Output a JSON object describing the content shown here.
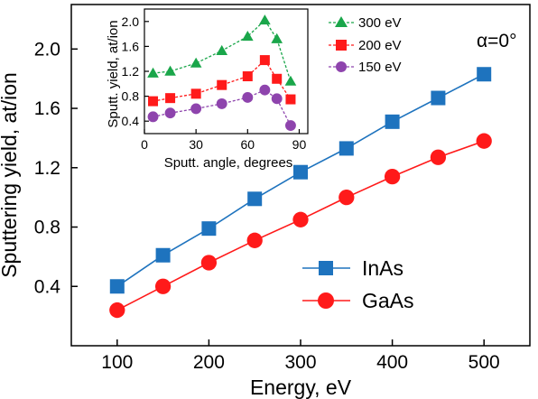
{
  "chart_data": [
    {
      "type": "line",
      "annotation": "α=0°",
      "xlabel": "Energy, eV",
      "ylabel": "Sputtering yield, at/ion",
      "xlim": [
        50,
        550
      ],
      "ylim": [
        0.0,
        2.3
      ],
      "xticks": [
        100,
        200,
        300,
        400,
        500
      ],
      "xtick_labels": [
        "100",
        "200",
        "300",
        "400",
        "500"
      ],
      "yticks": [
        0.4,
        0.8,
        1.2,
        1.6,
        2.0
      ],
      "ytick_labels": [
        "0.4",
        "0.8",
        "1.2",
        "1.6",
        "2.0"
      ],
      "legend_position": "lower-right",
      "grid": false,
      "series": [
        {
          "name": "InAs",
          "color": "#1e73be",
          "marker": "square",
          "x": [
            100,
            150,
            200,
            250,
            300,
            350,
            400,
            450,
            500
          ],
          "y": [
            0.4,
            0.61,
            0.79,
            0.99,
            1.17,
            1.33,
            1.51,
            1.67,
            1.83
          ]
        },
        {
          "name": "GaAs",
          "color": "#ff1a1a",
          "marker": "circle",
          "x": [
            100,
            150,
            200,
            250,
            300,
            350,
            400,
            450,
            500
          ],
          "y": [
            0.24,
            0.4,
            0.56,
            0.71,
            0.85,
            1.0,
            1.14,
            1.27,
            1.38
          ]
        }
      ]
    },
    {
      "type": "line",
      "inset": true,
      "xlabel": "Sputt. angle, degrees",
      "ylabel": "Sputt. yield, at/ion",
      "xlim": [
        0,
        95
      ],
      "ylim": [
        0.2,
        2.2
      ],
      "xticks": [
        0,
        30,
        60,
        90
      ],
      "xtick_labels": [
        "0",
        "30",
        "60",
        "90"
      ],
      "yticks": [
        0.4,
        0.8,
        1.2,
        1.6,
        2.0
      ],
      "ytick_labels": [
        "0.4",
        "0.8",
        "1.2",
        "1.6",
        "2.0"
      ],
      "legend_position": "top-right",
      "grid": false,
      "series": [
        {
          "name": "300 eV",
          "color": "#1aa64a",
          "marker": "triangle",
          "x": [
            5,
            15,
            30,
            45,
            60,
            70,
            77,
            85
          ],
          "y": [
            1.17,
            1.2,
            1.33,
            1.53,
            1.76,
            2.02,
            1.72,
            1.04
          ]
        },
        {
          "name": "200 eV",
          "color": "#ff1a1a",
          "marker": "square",
          "x": [
            5,
            15,
            30,
            45,
            60,
            70,
            77,
            85
          ],
          "y": [
            0.72,
            0.77,
            0.84,
            0.98,
            1.12,
            1.38,
            1.08,
            0.75
          ]
        },
        {
          "name": "150 eV",
          "color": "#8e44ad",
          "marker": "circle",
          "x": [
            5,
            15,
            30,
            45,
            60,
            70,
            77,
            85
          ],
          "y": [
            0.47,
            0.53,
            0.6,
            0.68,
            0.78,
            0.9,
            0.76,
            0.33
          ]
        }
      ]
    }
  ]
}
